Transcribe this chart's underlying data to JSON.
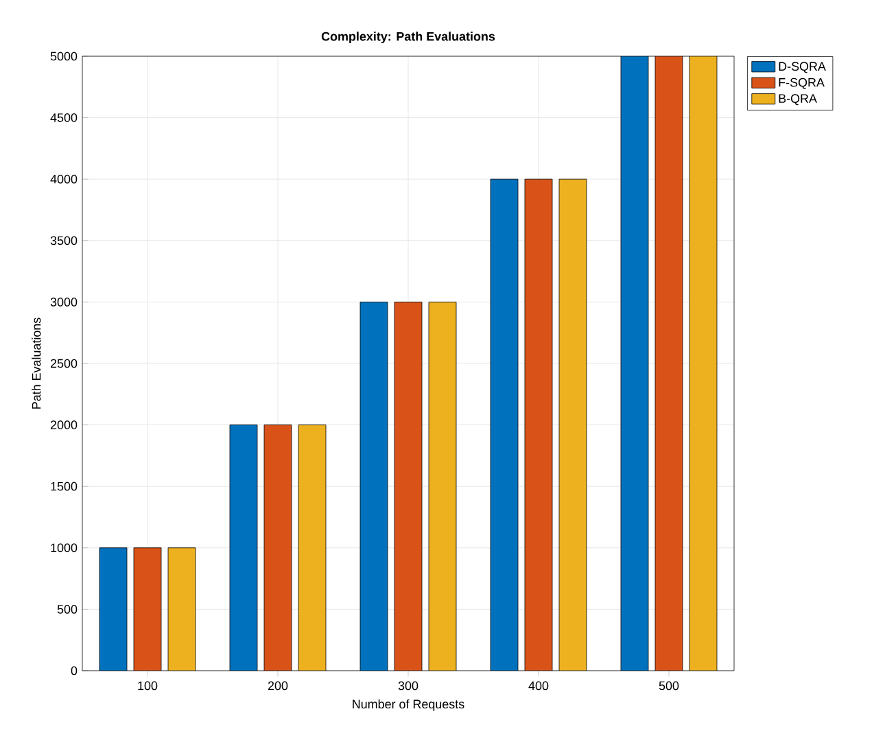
{
  "chart_data": {
    "type": "bar",
    "title": "Complexity: Path Evaluations",
    "xlabel": "Number of Requests",
    "ylabel": "Path Evaluations",
    "categories": [
      "100",
      "200",
      "300",
      "400",
      "500"
    ],
    "series": [
      {
        "name": "D-SQRA",
        "color": "#0072bd",
        "values": [
          1000,
          2000,
          3000,
          4000,
          5000
        ]
      },
      {
        "name": "F-SQRA",
        "color": "#d95319",
        "values": [
          1000,
          2000,
          3000,
          4000,
          5000
        ]
      },
      {
        "name": "B-QRA",
        "color": "#edb120",
        "values": [
          1000,
          2000,
          3000,
          4000,
          5000
        ]
      }
    ],
    "ylim": [
      0,
      5000
    ],
    "yticks": [
      0,
      500,
      1000,
      1500,
      2000,
      2500,
      3000,
      3500,
      4000,
      4500,
      5000
    ],
    "grid": true,
    "legend": "top right"
  }
}
